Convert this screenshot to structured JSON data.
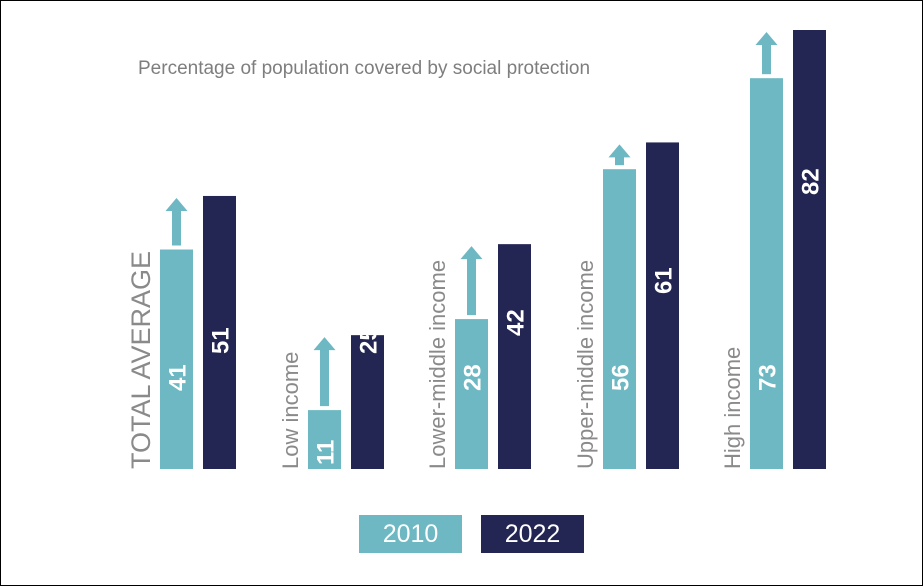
{
  "chart_data": {
    "type": "bar",
    "title": "Percentage of population covered by social protection",
    "categories": [
      "TOTAL AVERAGE",
      "Low income",
      "Lower-middle income",
      "Upper-middle income",
      "High income"
    ],
    "series": [
      {
        "name": "2010",
        "values": [
          41,
          11,
          28,
          56,
          73
        ]
      },
      {
        "name": "2022",
        "values": [
          51,
          25,
          42,
          61,
          82
        ]
      }
    ],
    "ylim": [
      0,
      82
    ],
    "grid": false,
    "legend": "bottom-center",
    "colors": {
      "2010": "#6db8c2",
      "2022": "#232552",
      "category_label": "#8a8a8a",
      "title": "#7e7e7e"
    }
  }
}
